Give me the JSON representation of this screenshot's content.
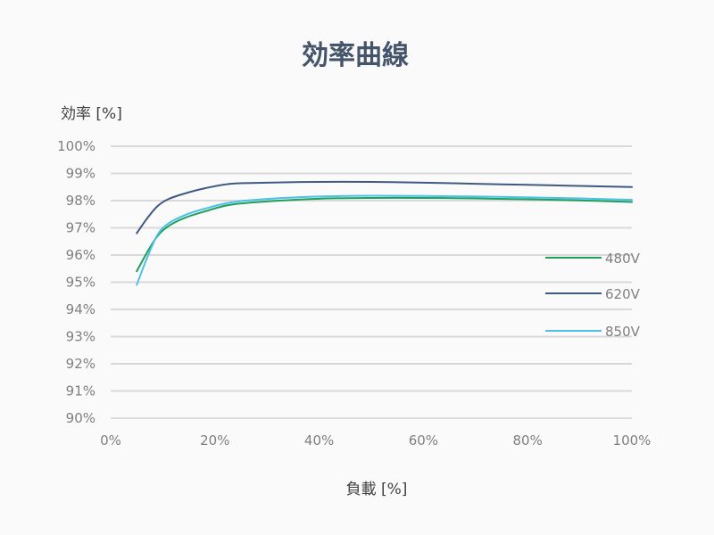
{
  "chart_data": {
    "type": "line",
    "title": "効率曲線",
    "ylabel": "効率 [%]",
    "xlabel": "負載 [%]",
    "xlim": [
      0,
      100
    ],
    "ylim": [
      90,
      100
    ],
    "x_ticks": [
      "0%",
      "20%",
      "40%",
      "60%",
      "80%",
      "100%"
    ],
    "y_ticks": [
      "90%",
      "91%",
      "92%",
      "93%",
      "94%",
      "95%",
      "96%",
      "97%",
      "98%",
      "99%",
      "100%"
    ],
    "x_tick_values": [
      0,
      20,
      40,
      60,
      80,
      100
    ],
    "y_tick_values": [
      90,
      91,
      92,
      93,
      94,
      95,
      96,
      97,
      98,
      99,
      100
    ],
    "grid": true,
    "legend": "right",
    "series": [
      {
        "name": "480V",
        "color": "#1fa05a",
        "x": [
          5,
          7,
          9,
          11,
          14,
          18,
          23,
          30,
          40,
          50,
          60,
          70,
          80,
          90,
          100
        ],
        "y": [
          95.4,
          96.1,
          96.7,
          97.05,
          97.35,
          97.6,
          97.85,
          97.97,
          98.07,
          98.1,
          98.1,
          98.08,
          98.05,
          98.01,
          97.95
        ]
      },
      {
        "name": "620V",
        "color": "#3f5a80",
        "x": [
          5,
          7,
          9,
          11,
          14,
          18,
          23,
          30,
          40,
          50,
          60,
          70,
          80,
          90,
          100
        ],
        "y": [
          96.8,
          97.35,
          97.8,
          98.05,
          98.25,
          98.45,
          98.62,
          98.66,
          98.69,
          98.69,
          98.66,
          98.62,
          98.58,
          98.54,
          98.5
        ]
      },
      {
        "name": "850V",
        "color": "#4cc0ea",
        "x": [
          5,
          7,
          9,
          11,
          14,
          18,
          23,
          30,
          40,
          50,
          60,
          70,
          80,
          90,
          100
        ],
        "y": [
          94.9,
          95.9,
          96.75,
          97.15,
          97.45,
          97.7,
          97.93,
          98.06,
          98.15,
          98.18,
          98.17,
          98.15,
          98.12,
          98.08,
          98.03
        ]
      }
    ]
  }
}
